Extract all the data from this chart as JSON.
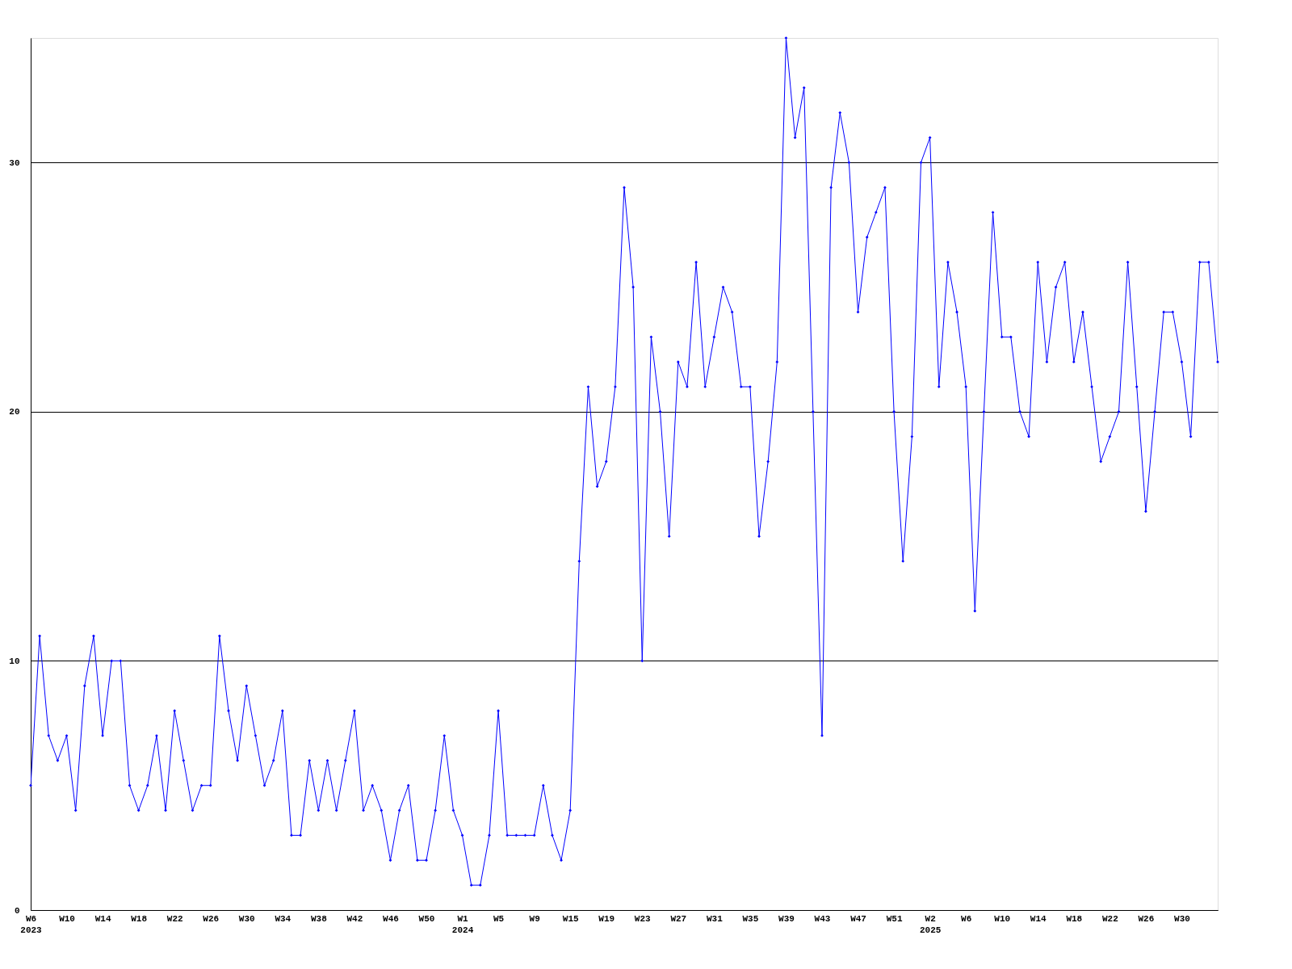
{
  "chart_data": {
    "type": "line",
    "categories": [
      "W6\n2023",
      null,
      null,
      null,
      "W10",
      null,
      null,
      null,
      "W14",
      null,
      null,
      null,
      "W18",
      null,
      null,
      null,
      "W22",
      null,
      null,
      null,
      "W26",
      null,
      null,
      null,
      "W30",
      null,
      null,
      null,
      "W34",
      null,
      null,
      null,
      "W38",
      null,
      null,
      null,
      "W42",
      null,
      null,
      null,
      "W46",
      null,
      null,
      null,
      "W50",
      null,
      null,
      null,
      "W1\n2024",
      null,
      null,
      null,
      "W5",
      null,
      null,
      null,
      "W9",
      null,
      null,
      null,
      "W15",
      null,
      null,
      null,
      "W19",
      null,
      null,
      null,
      "W23",
      null,
      null,
      null,
      "W27",
      null,
      null,
      null,
      "W31",
      null,
      null,
      null,
      "W35",
      null,
      null,
      null,
      "W39",
      null,
      null,
      null,
      "W43",
      null,
      null,
      null,
      "W47",
      null,
      null,
      null,
      "W51",
      null,
      null,
      null,
      "W2\n2025",
      null,
      null,
      null,
      "W6",
      null,
      null,
      null,
      "W10",
      null,
      null,
      null,
      "W14",
      null,
      null,
      null,
      "W18",
      null,
      null,
      null,
      "W22",
      null,
      null,
      null,
      "W26",
      null,
      null,
      null,
      "W30",
      null,
      null,
      null,
      null
    ],
    "series": [
      {
        "color": "#0000ff",
        "values": [
          5,
          11,
          7,
          6,
          7,
          4,
          9,
          11,
          7,
          10,
          10,
          5,
          4,
          5,
          7,
          4,
          8,
          6,
          4,
          5,
          5,
          11,
          8,
          6,
          9,
          7,
          5,
          6,
          8,
          3,
          3,
          6,
          4,
          6,
          4,
          6,
          8,
          4,
          5,
          4,
          2,
          4,
          5,
          2,
          2,
          4,
          7,
          4,
          3,
          1,
          1,
          3,
          8,
          3,
          3,
          3,
          3,
          5,
          3,
          2,
          4,
          14,
          21,
          17,
          18,
          21,
          29,
          25,
          10,
          23,
          20,
          15,
          22,
          21,
          26,
          21,
          23,
          25,
          24,
          21,
          21,
          15,
          18,
          22,
          35,
          31,
          33,
          20,
          7,
          29,
          32,
          30,
          24,
          27,
          28,
          29,
          20,
          14,
          19,
          30,
          31,
          21,
          26,
          24,
          21,
          12,
          20,
          28,
          23,
          23,
          20,
          19,
          26,
          22,
          25,
          26,
          22,
          24,
          21,
          18,
          19,
          20,
          26,
          21,
          16,
          20,
          24,
          24,
          22,
          19,
          26,
          26,
          22
        ]
      }
    ],
    "ylim": [
      0,
      35
    ],
    "yticks": [
      0,
      10,
      20,
      30
    ],
    "grid": "y",
    "marker": "diamond",
    "line_style": "solid"
  }
}
